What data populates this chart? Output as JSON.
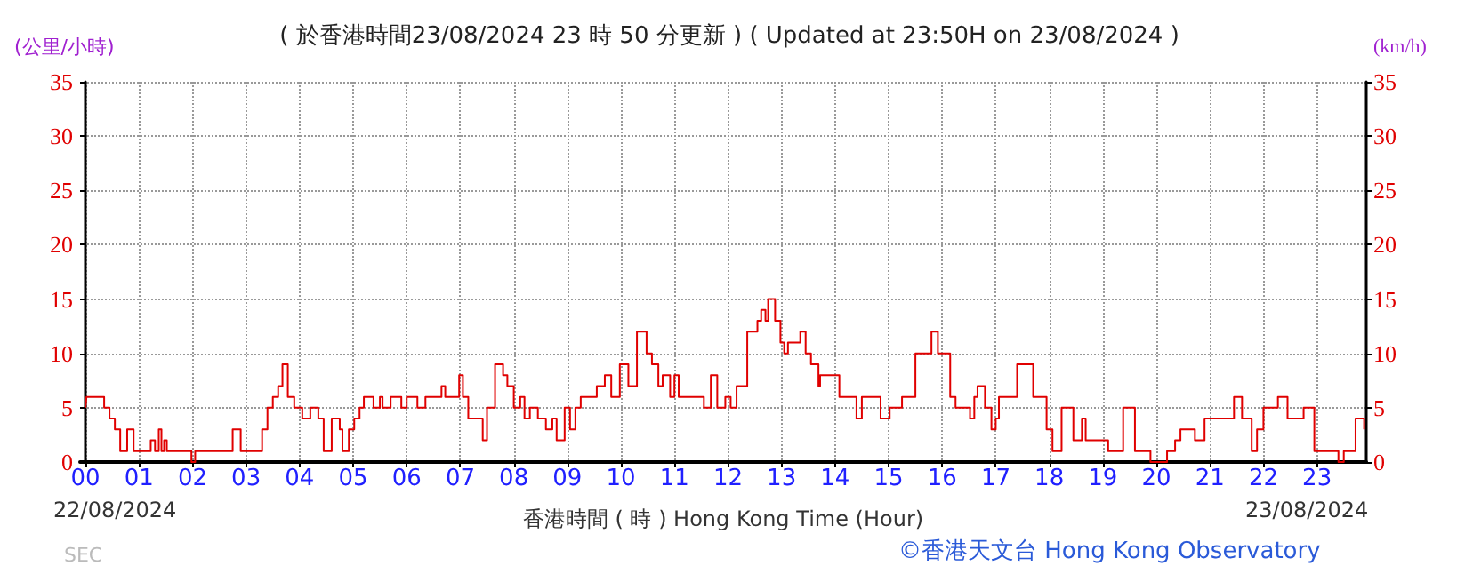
{
  "chart_data": {
    "type": "step",
    "title": "( 於香港時間23/08/2024 23 時 50 分更新 ) ( Updated at 23:50H on 23/08/2024 )",
    "xlabel": "香港時間 ( 時 ) Hong Kong Time (Hour)",
    "ylabel": "(公里/小時)",
    "y2label": "(km/h)",
    "annotations": [
      "22/08/2024",
      "23/08/2024",
      "SEC",
      "©香港天文台 Hong Kong Observatory"
    ],
    "x": [
      0,
      0.02,
      0.35,
      0.45,
      0.55,
      0.65,
      0.78,
      0.9,
      1.22,
      1.3,
      1.37,
      1.42,
      1.47,
      1.52,
      1.98,
      2.05,
      2.75,
      2.9,
      3.3,
      3.4,
      3.5,
      3.6,
      3.68,
      3.78,
      3.9,
      4.05,
      4.2,
      4.35,
      4.45,
      4.6,
      4.75,
      4.8,
      4.92,
      5.02,
      5.12,
      5.2,
      5.38,
      5.5,
      5.55,
      5.7,
      5.9,
      6.0,
      6.2,
      6.35,
      6.65,
      6.72,
      6.98,
      7.05,
      7.15,
      7.42,
      7.5,
      7.65,
      7.8,
      7.88,
      8.0,
      8.12,
      8.2,
      8.3,
      8.45,
      8.6,
      8.72,
      8.8,
      8.95,
      9.05,
      9.15,
      9.25,
      9.55,
      9.7,
      9.82,
      9.98,
      10.14,
      10.3,
      10.48,
      10.58,
      10.7,
      10.78,
      10.92,
      11.0,
      11.08,
      11.55,
      11.68,
      11.8,
      11.95,
      12.05,
      12.16,
      12.36,
      12.55,
      12.62,
      12.7,
      12.75,
      12.88,
      12.98,
      13.05,
      13.12,
      13.35,
      13.45,
      13.55,
      13.69,
      13.72,
      14.08,
      14.4,
      14.5,
      14.85,
      15.02,
      15.25,
      15.5,
      15.8,
      15.92,
      16.15,
      16.25,
      16.52,
      16.6,
      16.66,
      16.8,
      16.92,
      17.0,
      17.06,
      17.4,
      17.7,
      17.95,
      18.06,
      18.23,
      18.45,
      18.61,
      18.68,
      19.1,
      19.38,
      19.6,
      19.89,
      20.2,
      20.35,
      20.45,
      20.72,
      20.9,
      21.45,
      21.6,
      21.78,
      21.88,
      22.0,
      22.27,
      22.45,
      22.75,
      22.95,
      23.4,
      23.5,
      23.72,
      23.88
    ],
    "series": [
      {
        "color": "#e00000",
        "values": [
          5,
          6,
          5,
          4,
          3,
          1,
          3,
          1,
          2,
          1,
          3,
          1,
          2,
          1,
          0,
          1,
          3,
          1,
          3,
          5,
          6,
          7,
          9,
          6,
          5,
          4,
          5,
          4,
          1,
          4,
          3,
          1,
          3,
          4,
          5,
          6,
          5,
          6,
          5,
          6,
          5,
          6,
          5,
          6,
          7,
          6,
          8,
          6,
          4,
          2,
          5,
          9,
          8,
          7,
          5,
          6,
          4,
          5,
          4,
          3,
          4,
          2,
          5,
          3,
          5,
          6,
          7,
          8,
          6,
          9,
          7,
          12,
          10,
          9,
          7,
          8,
          6,
          8,
          6,
          5,
          8,
          5,
          6,
          5,
          7,
          12,
          13,
          14,
          13,
          15,
          13,
          11,
          10,
          11,
          12,
          10,
          9,
          7,
          8,
          6,
          4,
          6,
          4,
          5,
          6,
          10,
          12,
          10,
          6,
          5,
          4,
          6,
          7,
          5,
          3,
          4,
          6,
          9,
          6,
          3,
          1,
          5,
          2,
          4,
          2,
          1,
          5,
          1,
          0,
          1,
          2,
          3,
          2,
          4,
          6,
          4,
          1,
          3,
          5,
          6,
          4,
          5,
          1,
          0,
          1,
          4,
          3
        ]
      }
    ],
    "xlim": [
      -0.1,
      23.92
    ],
    "xticks": [
      {
        "value": 0,
        "label": "00"
      },
      {
        "value": 1,
        "label": "01"
      },
      {
        "value": 2,
        "label": "02"
      },
      {
        "value": 3,
        "label": "03"
      },
      {
        "value": 4,
        "label": "04"
      },
      {
        "value": 5,
        "label": "05"
      },
      {
        "value": 6,
        "label": "06"
      },
      {
        "value": 7,
        "label": "07"
      },
      {
        "value": 8,
        "label": "08"
      },
      {
        "value": 9,
        "label": "09"
      },
      {
        "value": 10,
        "label": "10"
      },
      {
        "value": 11,
        "label": "11"
      },
      {
        "value": 12,
        "label": "12"
      },
      {
        "value": 13,
        "label": "13"
      },
      {
        "value": 14,
        "label": "14"
      },
      {
        "value": 15,
        "label": "15"
      },
      {
        "value": 16,
        "label": "16"
      },
      {
        "value": 17,
        "label": "17"
      },
      {
        "value": 18,
        "label": "18"
      },
      {
        "value": 19,
        "label": "19"
      },
      {
        "value": 20,
        "label": "20"
      },
      {
        "value": 21,
        "label": "21"
      },
      {
        "value": 22,
        "label": "22"
      },
      {
        "value": 23,
        "label": "23"
      }
    ],
    "ylim": [
      0,
      35
    ],
    "yticks": [
      0,
      5,
      10,
      15,
      20,
      25,
      30,
      35
    ],
    "y2lim": [
      0,
      35
    ],
    "y2ticks": [
      0,
      5,
      10,
      15,
      20,
      25,
      30,
      35
    ],
    "grid": true,
    "marker": "none",
    "line_style": "solid"
  }
}
